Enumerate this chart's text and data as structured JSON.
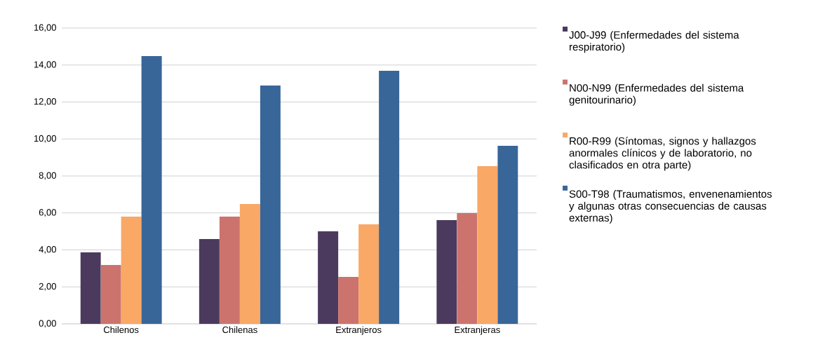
{
  "chart_data": {
    "type": "bar",
    "categories": [
      "Chilenos",
      "Chilenas",
      "Extranjeros",
      "Extranjeras"
    ],
    "series": [
      {
        "name": "J00-J99 (Enfermedades del sistema respiratorio)",
        "color": "#4b3a5e",
        "values": [
          3.87,
          4.59,
          5.0,
          5.61
        ]
      },
      {
        "name": "N00-N99 (Enfermedades del sistema genitourinario)",
        "color": "#cc736d",
        "values": [
          3.18,
          5.8,
          2.54,
          5.99
        ]
      },
      {
        "name": "R00-R99 (Síntomas, signos y hallazgos anormales clínicos y de laboratorio, no clasificados en otra parte)",
        "color": "#f9a866",
        "values": [
          5.8,
          6.48,
          5.38,
          8.53
        ]
      },
      {
        "name": "S00-T98 (Traumatismos, envenenamientos y algunas otras consecuencias de causas externas)",
        "color": "#386699",
        "values": [
          14.48,
          12.89,
          13.69,
          9.63
        ]
      }
    ],
    "ylim": [
      0,
      16
    ],
    "yticks": [
      {
        "value": 0,
        "label": "0,00"
      },
      {
        "value": 2,
        "label": "2,00"
      },
      {
        "value": 4,
        "label": "4,00"
      },
      {
        "value": 6,
        "label": "6,00"
      },
      {
        "value": 8,
        "label": "8,00"
      },
      {
        "value": 10,
        "label": "10,00"
      },
      {
        "value": 12,
        "label": "12,00"
      },
      {
        "value": 14,
        "label": "14,00"
      },
      {
        "value": 16,
        "label": "16,00"
      }
    ],
    "grid": "y",
    "legend": "right"
  }
}
